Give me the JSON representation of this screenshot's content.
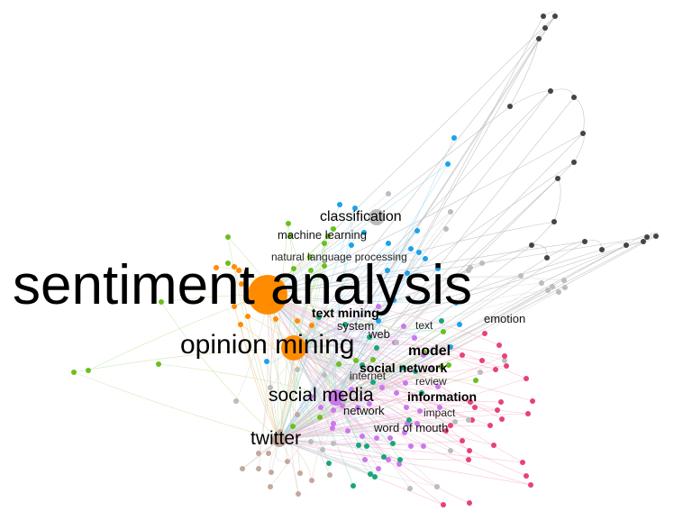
{
  "labels": {
    "sentiment_analysis": "sentiment analysis",
    "opinion_mining": "opinion mining",
    "social_media": "social media",
    "twitter": "twitter",
    "classification": "classification",
    "machine_learning": "machine learning",
    "natural_language_processing": "natural language processing",
    "text_mining": "text mining",
    "system": "system",
    "web": "web",
    "text": "text",
    "emotion": "emotion",
    "model": "model",
    "social_network": "social network",
    "internet": "internet",
    "review": "review",
    "information": "information",
    "network": "network",
    "impact": "impact",
    "word_of_mouth": "word of mouth"
  },
  "clusters": {
    "orange": "#ff8c00",
    "blue": "#1aa3e8",
    "green": "#6abf1e",
    "purple": "#cc77ee",
    "teal": "#17a67a",
    "pink": "#e8417a",
    "gray": "#bcbcbc",
    "dark": "#444444",
    "tan": "#c2a89e"
  }
}
